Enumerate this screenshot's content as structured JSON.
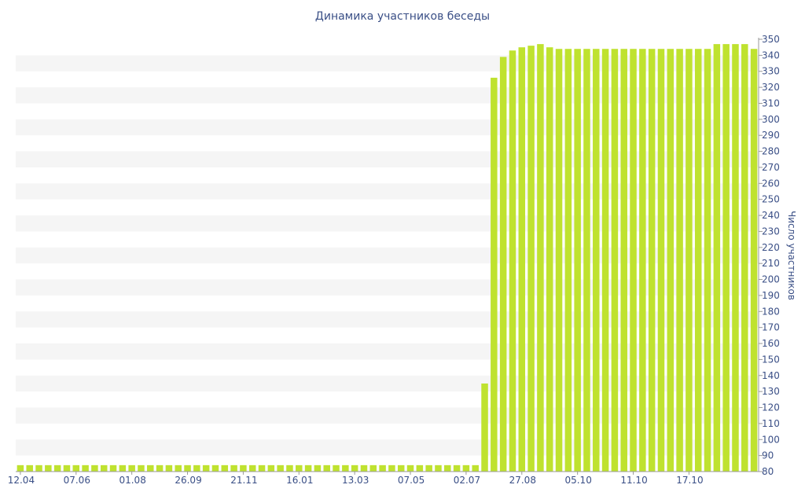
{
  "chart_data": {
    "type": "bar",
    "title": "Динамика участников беседы",
    "ylabel": "Число участников",
    "xlabel": "",
    "ylim": [
      80,
      350
    ],
    "y_ticks": [
      80,
      90,
      100,
      110,
      120,
      130,
      140,
      150,
      160,
      170,
      180,
      190,
      200,
      210,
      220,
      230,
      240,
      250,
      260,
      270,
      280,
      290,
      300,
      310,
      320,
      330,
      340,
      350
    ],
    "y_axis_position": "right",
    "grid": "alternating horizontal bands",
    "x_tick_labels": [
      "12.04",
      "07.06",
      "01.08",
      "26.09",
      "21.11",
      "16.01",
      "13.03",
      "07.05",
      "02.07",
      "27.08",
      "05.10",
      "11.10",
      "17.10"
    ],
    "values": [
      84,
      84,
      84,
      84,
      84,
      84,
      84,
      84,
      84,
      84,
      84,
      84,
      84,
      84,
      84,
      84,
      84,
      84,
      84,
      84,
      84,
      84,
      84,
      84,
      84,
      84,
      84,
      84,
      84,
      84,
      84,
      84,
      84,
      84,
      84,
      84,
      84,
      84,
      84,
      84,
      84,
      84,
      84,
      84,
      84,
      84,
      84,
      84,
      84,
      84,
      135,
      326,
      339,
      343,
      345,
      346,
      347,
      345,
      344,
      344,
      344,
      344,
      344,
      344,
      344,
      344,
      344,
      344,
      344,
      344,
      344,
      344,
      344,
      344,
      344,
      347,
      347,
      347,
      347,
      344
    ],
    "colors": {
      "bar": "#bfe22f",
      "band": "#f5f5f5",
      "text": "#3a4f86",
      "axis": "#999999"
    }
  }
}
